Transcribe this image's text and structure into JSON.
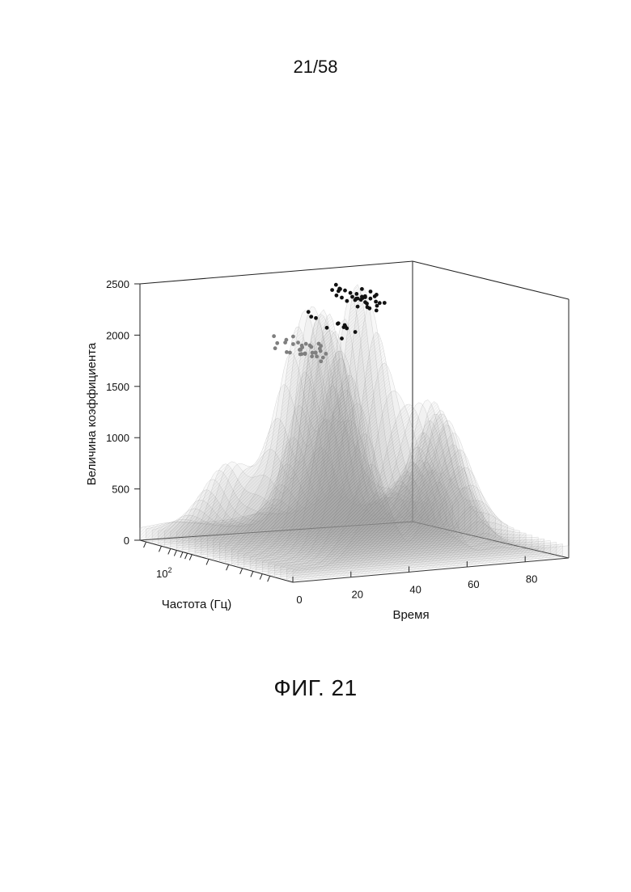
{
  "page": {
    "number": "21/58",
    "caption": "ФИГ. 21"
  },
  "chart_data": {
    "type": "surface3d",
    "title": "",
    "zlabel": "Величина коэффициента",
    "freq_label": "Частота (Гц)",
    "time_label": "Время",
    "z_ticks": [
      "0",
      "500",
      "1000",
      "1500",
      "2000",
      "2500"
    ],
    "zlim": [
      0,
      2500
    ],
    "time_ticks": [
      "0",
      "20",
      "40",
      "60",
      "80"
    ],
    "time_range": [
      0,
      95
    ],
    "freq_tick_label": "10",
    "freq_tick_exp": "2",
    "freq_scale": "log",
    "grid": false,
    "colors": {
      "surface": "#9a9a9a",
      "markers_gray": "#7f7f7f",
      "markers_black": "#111111"
    },
    "surface_peaks": [
      {
        "time": 22,
        "freq_index": 0.35,
        "height": 2050
      },
      {
        "time": 40,
        "freq_index": 0.55,
        "height": 2200
      },
      {
        "time": 62,
        "freq_index": 0.75,
        "height": 2300
      },
      {
        "time": 30,
        "freq_index": 0.2,
        "height": 1450
      },
      {
        "time": 70,
        "freq_index": 0.4,
        "height": 1250
      },
      {
        "time": 50,
        "freq_index": 0.1,
        "height": 900
      },
      {
        "time": 10,
        "freq_index": 0.6,
        "height": 750
      },
      {
        "time": 85,
        "freq_index": 0.65,
        "height": 1050
      }
    ],
    "marker_groups": [
      {
        "color": "gray",
        "time": 22,
        "freq_index": 0.35,
        "height": 2080,
        "count": 34
      },
      {
        "color": "black",
        "time": 40,
        "freq_index": 0.55,
        "height": 2260,
        "count": 8
      },
      {
        "color": "black",
        "time": 52,
        "freq_index": 0.72,
        "height": 2080,
        "count": 4
      },
      {
        "color": "black",
        "time": 62,
        "freq_index": 0.75,
        "height": 2320,
        "count": 36
      }
    ]
  }
}
